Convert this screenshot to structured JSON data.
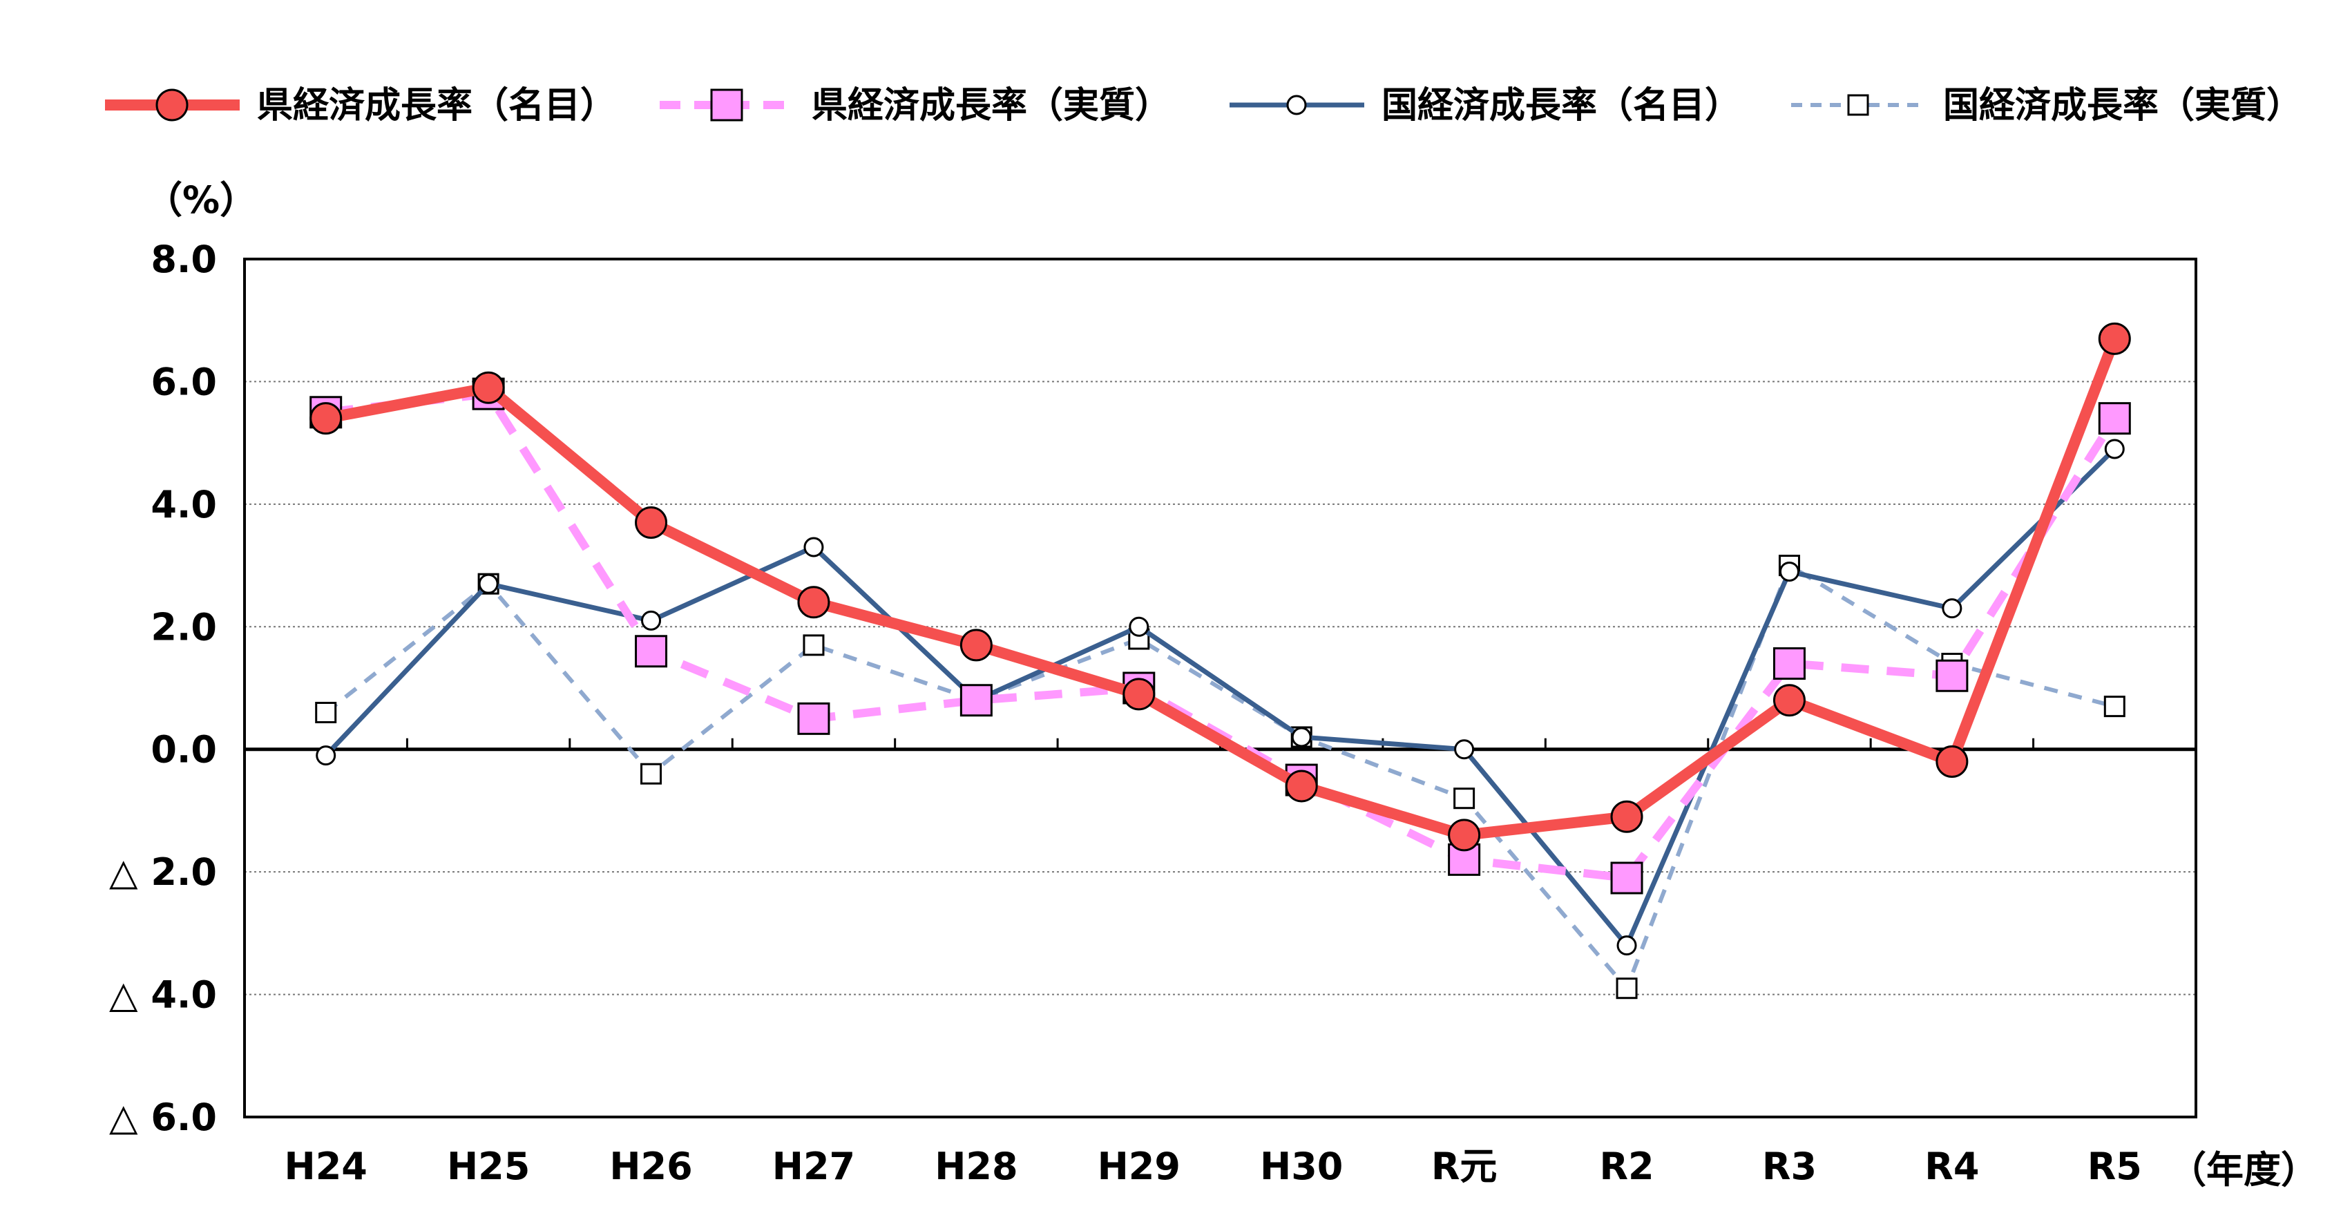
{
  "chart_data": {
    "type": "line",
    "title": "",
    "ylabel": "（%）",
    "xlabel": "（年度）",
    "ylim": [
      -6,
      8
    ],
    "yticks": [
      8,
      6,
      4,
      2,
      0,
      -2,
      -4,
      -6
    ],
    "ytick_labels": [
      "8.0",
      "6.0",
      "4.0",
      "2.0",
      "0.0",
      "△ 2.0",
      "△ 4.0",
      "△ 6.0"
    ],
    "grid": "horizontal dotted",
    "legend_position": "top",
    "categories": [
      "H24",
      "H25",
      "H26",
      "H27",
      "H28",
      "H29",
      "H30",
      "R元",
      "R2",
      "R3",
      "R4",
      "R5"
    ],
    "series": [
      {
        "name": "県経済成長率（名目）",
        "color": "#f5504f",
        "style": "solid-thick",
        "marker": "circle-filled",
        "values": [
          5.4,
          5.9,
          3.7,
          2.4,
          1.7,
          0.9,
          -0.6,
          -1.4,
          -1.1,
          0.8,
          -0.2,
          6.7
        ]
      },
      {
        "name": "県経済成長率（実質）",
        "color": "#ff99ff",
        "style": "dashed-thick",
        "marker": "square-filled",
        "values": [
          5.5,
          5.8,
          1.6,
          0.5,
          0.8,
          1.0,
          -0.5,
          -1.8,
          -2.1,
          1.4,
          1.2,
          5.4
        ]
      },
      {
        "name": "国経済成長率（名目）",
        "color": "#3a5f8f",
        "style": "solid",
        "marker": "circle-open",
        "values": [
          -0.1,
          2.7,
          2.1,
          3.3,
          0.8,
          2.0,
          0.2,
          0.0,
          -3.2,
          2.9,
          2.3,
          4.9
        ]
      },
      {
        "name": "国経済成長率（実質）",
        "color": "#8fa9cf",
        "style": "dashed",
        "marker": "square-open",
        "values": [
          0.6,
          2.7,
          -0.4,
          1.7,
          0.8,
          1.8,
          0.2,
          -0.8,
          -3.9,
          3.0,
          1.4,
          0.7
        ]
      }
    ]
  }
}
